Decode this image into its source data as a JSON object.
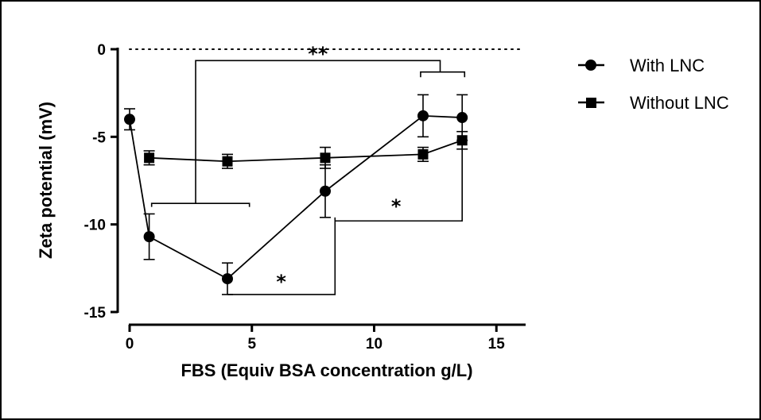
{
  "chart_data": {
    "type": "line",
    "title": "",
    "xlabel": "FBS (Equiv BSA concentration g/L)",
    "ylabel": "Zeta potential (mV)",
    "xlim": [
      0,
      16
    ],
    "ylim": [
      -15,
      0
    ],
    "x_ticks": [
      0,
      5,
      10,
      15
    ],
    "y_ticks": [
      0,
      -5,
      -10,
      -15
    ],
    "legend_position": "right",
    "grid": false,
    "reference_line": {
      "y": 0,
      "style": "dotted"
    },
    "series": [
      {
        "name": "With LNC",
        "marker": "circle",
        "color": "#000000",
        "x": [
          0,
          0.8,
          4,
          8,
          12,
          13.6
        ],
        "y": [
          -4.0,
          -10.7,
          -13.1,
          -8.1,
          -3.8,
          -3.9
        ],
        "error": [
          0.6,
          1.3,
          0.9,
          1.5,
          1.2,
          1.3
        ]
      },
      {
        "name": "Without LNC",
        "marker": "square",
        "color": "#000000",
        "x": [
          0.8,
          4,
          8,
          12,
          13.6
        ],
        "y": [
          -6.2,
          -6.4,
          -6.2,
          -6.0,
          -5.2
        ],
        "error": [
          0.4,
          0.4,
          0.6,
          0.4,
          0.5
        ]
      }
    ],
    "significance": [
      {
        "label": "**",
        "pos": "top"
      },
      {
        "label": "*",
        "pos": "right"
      },
      {
        "label": "*",
        "pos": "bottom"
      }
    ]
  }
}
